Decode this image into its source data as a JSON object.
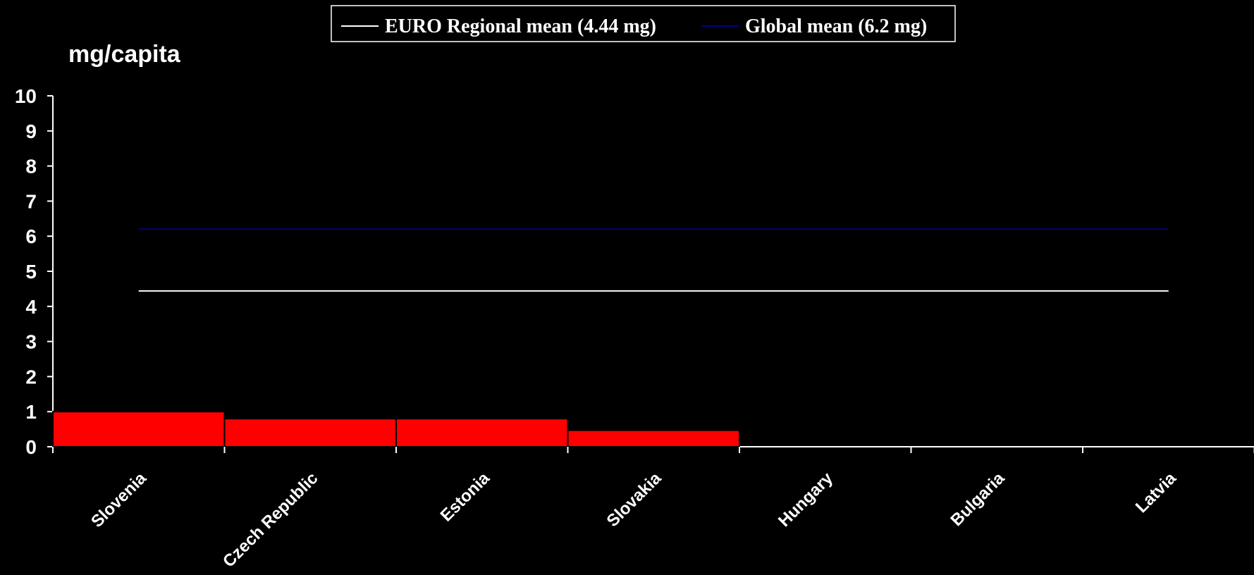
{
  "chart_data": {
    "type": "bar",
    "ylabel": "mg/capita",
    "ylim": [
      0,
      10
    ],
    "yticks": [
      "0",
      "1",
      "2",
      "3",
      "4",
      "5",
      "6",
      "7",
      "8",
      "9",
      "10"
    ],
    "categories": [
      "Slovenia",
      "Czech Republic",
      "Estonia",
      "Slovakia",
      "Hungary",
      "Bulgaria",
      "Latvia"
    ],
    "values": [
      1.0,
      0.8,
      0.8,
      0.47,
      0,
      0,
      0
    ],
    "bar_color": "#ff0000",
    "reference_lines": [
      {
        "name": "EURO Regional mean (4.44 mg)",
        "value": 4.44,
        "color": "#ffffff"
      },
      {
        "name": "Global mean (6.2 mg)",
        "value": 6.2,
        "color": "#00008b"
      }
    ],
    "legend_position": "top-center",
    "grid": false
  }
}
